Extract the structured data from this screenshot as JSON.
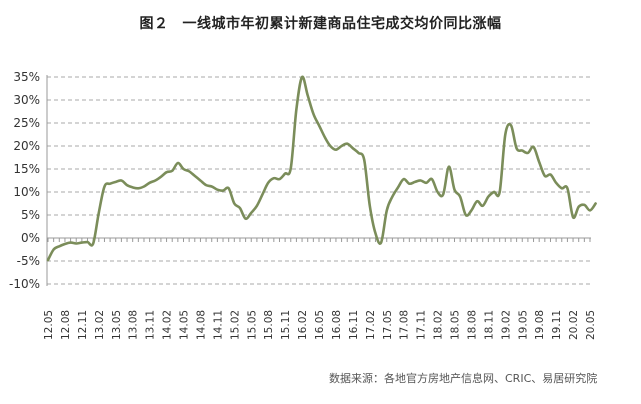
{
  "title": {
    "figure_no": "图２",
    "text": "一线城市年初累计新建商品住宅成交均价同比涨幅"
  },
  "source": "数据来源：各地官方房地产信息网、CRIC、易居研究院",
  "colors": {
    "line": "#7b8d5a",
    "grid": "#a8a8a8",
    "axis": "#999999",
    "text": "#333333"
  },
  "chart_data": {
    "type": "line",
    "title": "一线城市年初累计新建商品住宅成交均价同比涨幅",
    "xlabel": "",
    "ylabel": "",
    "ylim": [
      -10,
      35
    ],
    "yticks": [
      35,
      30,
      25,
      20,
      15,
      10,
      5,
      0,
      -5,
      -10
    ],
    "ytick_labels": [
      "35%",
      "30%",
      "25%",
      "20%",
      "15%",
      "10%",
      "5%",
      "0%",
      "-5%",
      "-10%"
    ],
    "grid": true,
    "legend": "none",
    "x_tick_labels": [
      "12.05",
      "12.08",
      "12.11",
      "13.02",
      "13.05",
      "13.08",
      "13.11",
      "14.02",
      "14.05",
      "14.08",
      "14.11",
      "15.02",
      "15.05",
      "15.08",
      "15.11",
      "16.02",
      "16.05",
      "16.08",
      "16.11",
      "17.02",
      "17.05",
      "17.08",
      "17.11",
      "18.02",
      "18.05",
      "18.08",
      "18.11",
      "19.02",
      "19.05",
      "19.08",
      "19.11",
      "20.02",
      "20.05"
    ],
    "x_tick_interval_months": 3,
    "series": [
      {
        "name": "一线城市年初累计新建商品住宅成交均价同比涨幅",
        "unit": "%",
        "start": "12.05",
        "frequency": "monthly",
        "values": [
          -4.8,
          -2.5,
          -1.8,
          -1.3,
          -1.0,
          -1.2,
          -1.0,
          -0.9,
          -1.2,
          5.5,
          11.2,
          11.8,
          12.2,
          12.5,
          11.5,
          11.0,
          10.8,
          11.2,
          12.0,
          12.5,
          13.3,
          14.3,
          14.6,
          16.3,
          15.0,
          14.5,
          13.5,
          12.5,
          11.5,
          11.2,
          10.5,
          10.3,
          10.8,
          7.5,
          6.5,
          4.2,
          5.5,
          7.0,
          9.5,
          12.0,
          13.0,
          12.8,
          14.0,
          15.2,
          28.0,
          35.0,
          31.0,
          27.0,
          24.5,
          22.0,
          20.0,
          19.2,
          20.0,
          20.5,
          19.5,
          18.5,
          17.0,
          7.0,
          1.0,
          -1.0,
          6.0,
          9.0,
          11.0,
          12.8,
          11.8,
          12.2,
          12.5,
          12.0,
          12.8,
          10.0,
          9.5,
          15.5,
          10.5,
          9.0,
          5.0,
          6.0,
          8.0,
          7.0,
          9.0,
          10.0,
          10.0,
          22.5,
          24.5,
          19.5,
          19.0,
          18.5,
          19.8,
          16.5,
          13.5,
          13.8,
          12.0,
          10.8,
          10.8,
          4.5,
          6.8,
          7.2,
          6.0,
          7.5
        ]
      }
    ]
  }
}
